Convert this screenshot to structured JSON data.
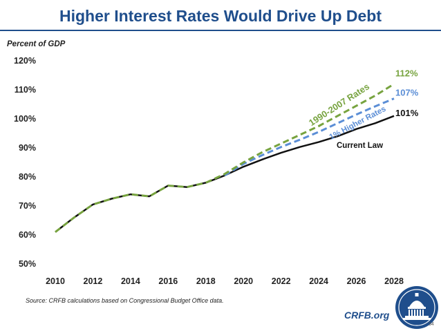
{
  "title": "Higher Interest Rates Would Drive Up Debt",
  "source": "Source: CRFB calculations based on Congressional Budget Office data.",
  "site": "CRFB.org",
  "page_number": "34",
  "logo": "capitol-dome-seal",
  "chart_data": {
    "type": "line",
    "ylabel": "Percent of GDP",
    "xlabel": "",
    "xlim": [
      2010,
      2028
    ],
    "ylim": [
      50,
      120
    ],
    "x_ticks": [
      "2010",
      "2012",
      "2014",
      "2016",
      "2018",
      "2020",
      "2022",
      "2024",
      "2026",
      "2028"
    ],
    "y_ticks": [
      50,
      60,
      70,
      80,
      90,
      100,
      110,
      120
    ],
    "y_tick_labels": [
      "50%",
      "60%",
      "70%",
      "80%",
      "90%",
      "100%",
      "110%",
      "120%"
    ],
    "grid": false,
    "series": [
      {
        "name": "1990-2007 Rates",
        "style": "dashed",
        "color": "#77a33f",
        "end_label": "112%",
        "x": [
          2010,
          2011,
          2012,
          2013,
          2014,
          2015,
          2016,
          2017,
          2018,
          2019,
          2020,
          2021,
          2022,
          2023,
          2024,
          2025,
          2026,
          2027,
          2028
        ],
        "values": [
          61,
          66,
          70.5,
          72.5,
          74,
          73.3,
          77,
          76.5,
          78,
          81,
          85,
          88.5,
          91.5,
          94.5,
          97.5,
          101,
          104.5,
          108,
          112
        ]
      },
      {
        "name": "1% Higher Rates",
        "style": "dashed",
        "color": "#5b8ed6",
        "end_label": "107%",
        "x": [
          2019,
          2020,
          2021,
          2022,
          2023,
          2024,
          2025,
          2026,
          2027,
          2028
        ],
        "values": [
          80.5,
          84.5,
          87.5,
          90.3,
          92.8,
          95.5,
          98.5,
          101.5,
          104.3,
          107
        ]
      },
      {
        "name": "Current Law",
        "style": "solid",
        "color": "#111111",
        "end_label": "101%",
        "x": [
          2010,
          2011,
          2012,
          2013,
          2014,
          2015,
          2016,
          2017,
          2018,
          2019,
          2020,
          2021,
          2022,
          2023,
          2024,
          2025,
          2026,
          2027,
          2028
        ],
        "values": [
          61,
          66,
          70.5,
          72.5,
          74,
          73.3,
          77,
          76.5,
          78,
          80.5,
          83.5,
          86,
          88.3,
          90.3,
          92,
          94,
          96.5,
          98.5,
          101
        ]
      }
    ]
  }
}
